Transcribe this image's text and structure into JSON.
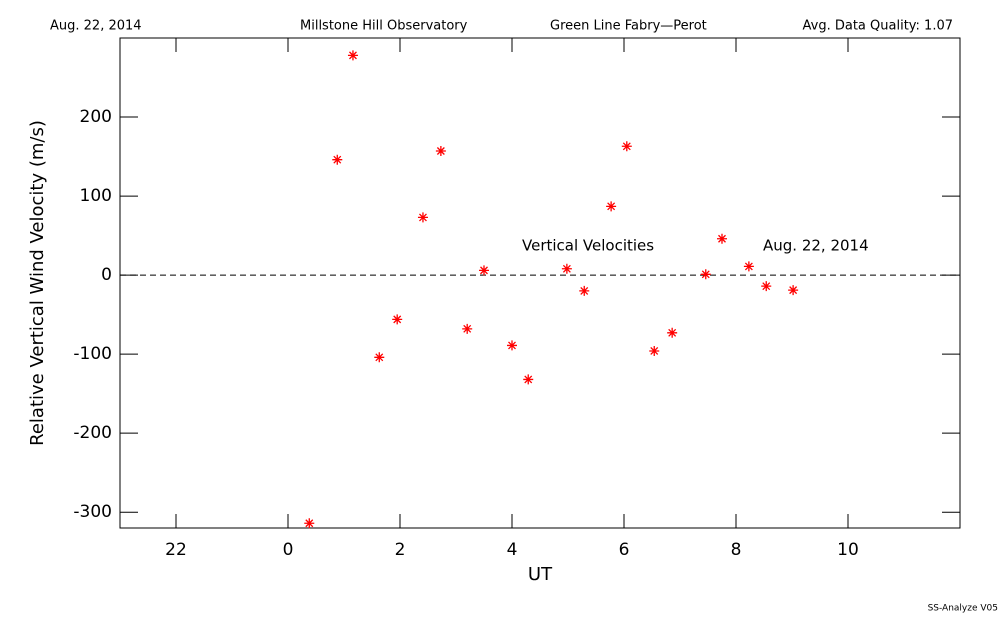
{
  "chart_data": {
    "type": "scatter",
    "header": [
      "Aug. 22, 2014",
      "Millstone Hill Observatory",
      "Green Line Fabry—Perot",
      "Avg. Data Quality: 1.07"
    ],
    "xlabel": "UT",
    "ylabel": "Relative Vertical Wind Velocity (m/s)",
    "annotations": [
      "Vertical Velocities",
      "Aug. 22, 2014"
    ],
    "footer": "SS-Analyze V05",
    "xlim": [
      -3,
      12
    ],
    "xticks": [
      {
        "value": -2,
        "label": "22"
      },
      0,
      2,
      4,
      6,
      8,
      10
    ],
    "ylim": [
      -320,
      300
    ],
    "yticks": [
      -300,
      -200,
      -100,
      0,
      100,
      200
    ],
    "hline": 0,
    "color": "#ff0000",
    "x": [
      0.38,
      0.88,
      1.16,
      1.63,
      1.95,
      2.41,
      2.73,
      3.2,
      3.5,
      4.0,
      4.29,
      4.98,
      5.29,
      5.77,
      6.05,
      6.54,
      6.86,
      7.46,
      7.75,
      8.23,
      8.54,
      9.02
    ],
    "values": [
      -314,
      146,
      278,
      -104,
      -56,
      73,
      157,
      -68,
      6,
      -89,
      -132,
      8,
      -20,
      87,
      163,
      -96,
      -73,
      1,
      46,
      11,
      -14,
      -19
    ]
  }
}
